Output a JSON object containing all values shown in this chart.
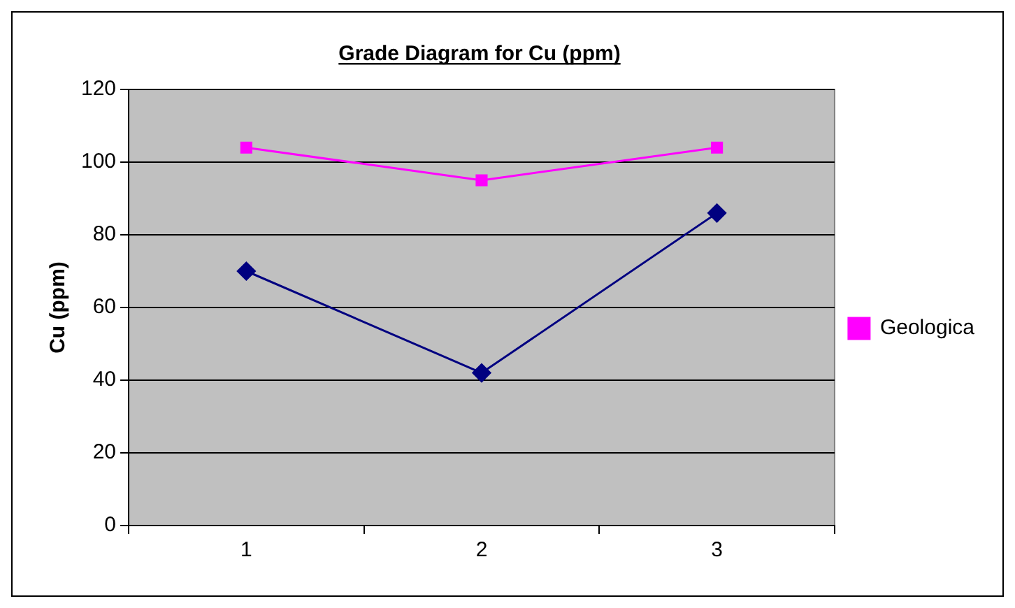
{
  "chart_data": {
    "type": "line",
    "title": "Grade Diagram for Cu (ppm)",
    "ylabel": "Cu (ppm)",
    "categories": [
      "1",
      "2",
      "3"
    ],
    "series": [
      {
        "color": "#000080",
        "marker": "diamond",
        "values": [
          70,
          42,
          86
        ]
      },
      {
        "name": "Geologica",
        "color": "#ff00ff",
        "marker": "square",
        "values": [
          104,
          95,
          104
        ]
      }
    ],
    "ylim": [
      0,
      120
    ],
    "yticks": [
      0,
      20,
      40,
      60,
      80,
      100,
      120
    ],
    "grid": "y",
    "legend": "right"
  }
}
